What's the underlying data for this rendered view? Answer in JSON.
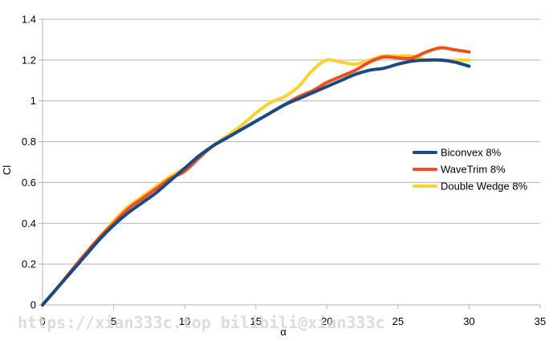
{
  "chart_data": {
    "type": "line",
    "title": "",
    "xlabel": "α",
    "ylabel": "Cl",
    "xlim": [
      0,
      35
    ],
    "ylim": [
      0,
      1.4
    ],
    "x_ticks": [
      0,
      5,
      10,
      15,
      20,
      25,
      30,
      35
    ],
    "y_ticks": [
      0,
      0.2,
      0.4,
      0.6,
      0.8,
      1,
      1.2,
      1.4
    ],
    "x_tick_labels": [
      "0",
      "5",
      "10",
      "15",
      "20",
      "25",
      "30",
      "35"
    ],
    "y_tick_labels": [
      "0",
      "0.2",
      "0.4",
      "0.6",
      "0.8",
      "1",
      "1.2",
      "1.4"
    ],
    "grid": "horizontal",
    "legend_position": "right",
    "series": [
      {
        "name": "Biconvex 8%",
        "color": "#1a4a86",
        "x": [
          0,
          1,
          2,
          3,
          4,
          5,
          6,
          7,
          8,
          9,
          10,
          11,
          12,
          13,
          14,
          15,
          16,
          17,
          18,
          19,
          20,
          21,
          22,
          23,
          24,
          25,
          26,
          27,
          28,
          29,
          30
        ],
        "y": [
          0,
          0.08,
          0.16,
          0.24,
          0.32,
          0.39,
          0.45,
          0.5,
          0.55,
          0.61,
          0.67,
          0.73,
          0.78,
          0.82,
          0.86,
          0.9,
          0.94,
          0.98,
          1.01,
          1.04,
          1.07,
          1.1,
          1.13,
          1.15,
          1.16,
          1.18,
          1.195,
          1.2,
          1.2,
          1.19,
          1.17
        ]
      },
      {
        "name": "WaveTrim 8%",
        "color": "#f04e1c",
        "x": [
          0,
          1,
          2,
          3,
          4,
          5,
          6,
          7,
          8,
          9,
          10,
          11,
          12,
          13,
          14,
          15,
          16,
          17,
          18,
          19,
          20,
          21,
          22,
          23,
          24,
          25,
          26,
          27,
          28,
          29,
          30
        ],
        "y": [
          0,
          0.08,
          0.165,
          0.25,
          0.33,
          0.4,
          0.47,
          0.52,
          0.57,
          0.62,
          0.655,
          0.72,
          0.78,
          0.82,
          0.86,
          0.9,
          0.94,
          0.98,
          1.02,
          1.05,
          1.09,
          1.12,
          1.15,
          1.19,
          1.215,
          1.21,
          1.21,
          1.24,
          1.26,
          1.25,
          1.24
        ]
      },
      {
        "name": "Double Wedge 8%",
        "color": "#ffd133",
        "x": [
          0,
          1,
          2,
          3,
          4,
          5,
          6,
          7,
          8,
          9,
          10,
          11,
          12,
          13,
          14,
          15,
          16,
          17,
          18,
          19,
          20,
          21,
          22,
          23,
          24,
          25,
          26,
          27,
          28,
          29,
          30
        ],
        "y": [
          0,
          0.08,
          0.16,
          0.245,
          0.33,
          0.41,
          0.48,
          0.53,
          0.58,
          0.63,
          0.67,
          0.73,
          0.78,
          0.83,
          0.88,
          0.94,
          0.99,
          1.02,
          1.07,
          1.15,
          1.2,
          1.19,
          1.18,
          1.2,
          1.22,
          1.22,
          1.22,
          1.2,
          1.2,
          1.2,
          1.2
        ]
      }
    ]
  },
  "watermark": "https://xian333c.top bilibili@xian333c"
}
